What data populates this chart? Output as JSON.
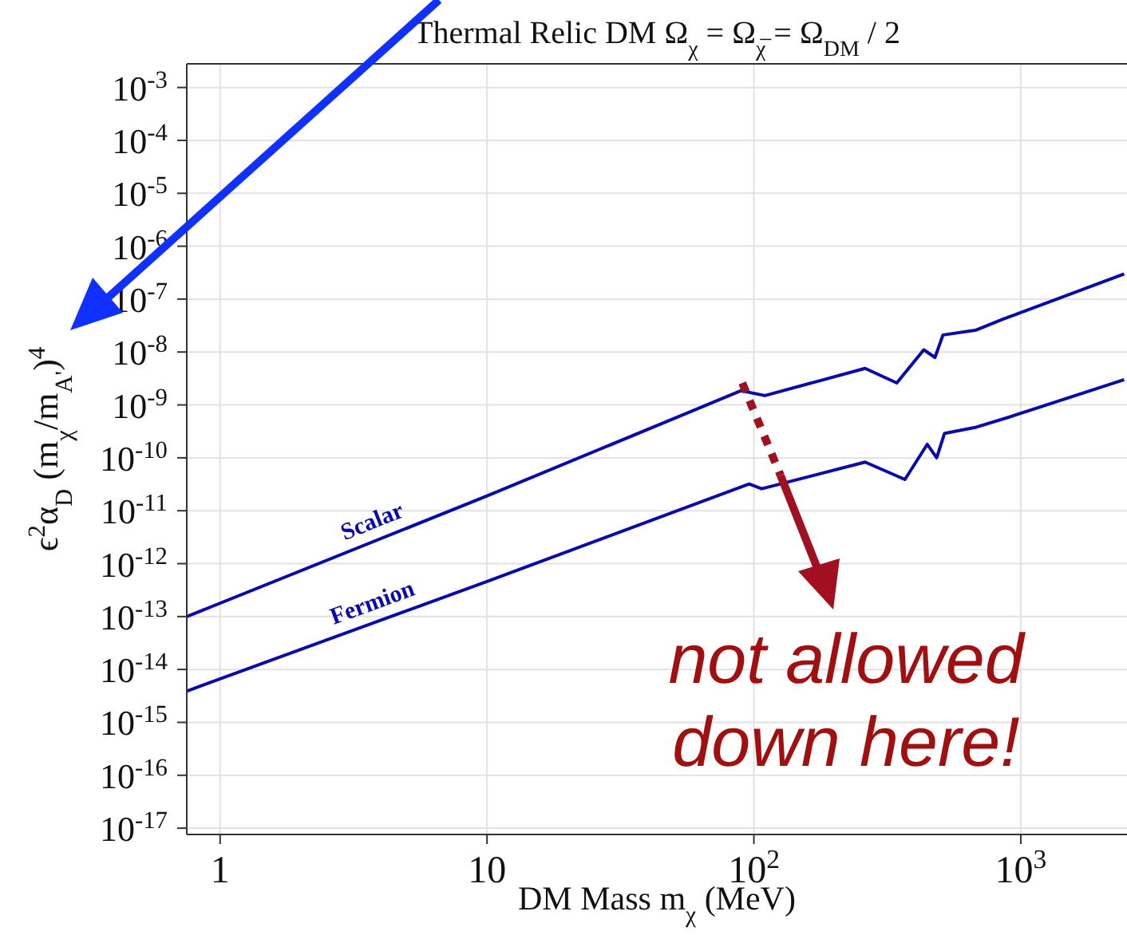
{
  "chart_data": {
    "type": "line",
    "title": "Thermal Relic DM Ω$_{χ}$ = Ω$_{χ̅}$ = Ω$_{DM}$ / 2",
    "xlabel": "DM Mass m$_{χ}$ (MeV)",
    "ylabel": "ϵ$^{2}$α$_{D}$ (m$_{χ}$/m$_{A'}$)$^{4}$",
    "log": "xy",
    "xlim": [
      0.75,
      2500
    ],
    "ylim": [
      7.6e-18,
      0.0028
    ],
    "xticks": [
      1,
      10,
      {
        "value": 100,
        "label": "10$^{2}$"
      },
      {
        "value": 1000,
        "label": "10$^{3}$"
      }
    ],
    "yticks": [
      {
        "value": 1e-17,
        "label": "10$^{-17}$"
      },
      {
        "value": 1e-16,
        "label": "10$^{-16}$"
      },
      {
        "value": 1e-15,
        "label": "10$^{-15}$"
      },
      {
        "value": 1e-14,
        "label": "10$^{-14}$"
      },
      {
        "value": 1e-13,
        "label": "10$^{-13}$"
      },
      {
        "value": 1e-12,
        "label": "10$^{-12}$"
      },
      {
        "value": 1e-11,
        "label": "10$^{-11}$"
      },
      {
        "value": 1e-10,
        "label": "10$^{-10}$"
      },
      {
        "value": 1e-09,
        "label": "10$^{-9}$"
      },
      {
        "value": 1e-08,
        "label": "10$^{-8}$"
      },
      {
        "value": 1e-07,
        "label": "10$^{-7}$"
      },
      {
        "value": 1e-06,
        "label": "10$^{-6}$"
      },
      {
        "value": 1e-05,
        "label": "10$^{-5}$"
      },
      {
        "value": 0.0001,
        "label": "10$^{-4}$"
      },
      {
        "value": 0.001,
        "label": "10$^{-3}$"
      }
    ],
    "grid": true,
    "series": [
      {
        "name": "Scalar",
        "color": "#0a0aa8",
        "x": [
          0.75,
          10,
          89.6,
          110,
          261,
          343,
          433,
          477,
          511,
          681,
          860,
          2440
        ],
        "values": [
          1e-13,
          1.9e-11,
          1.86e-09,
          1.5e-09,
          4.9e-09,
          2.6e-09,
          1.1e-08,
          7.9e-09,
          2.1e-08,
          2.6e-08,
          4.2e-08,
          3e-07
        ]
      },
      {
        "name": "Fermion",
        "color": "#0a0aa8",
        "x": [
          0.75,
          10,
          96,
          107,
          261,
          368,
          446,
          484,
          518,
          681,
          896,
          2440
        ],
        "values": [
          3.9e-15,
          4.6e-13,
          3.2e-11,
          2.6e-11,
          8.3e-11,
          3.9e-11,
          1.8e-10,
          1e-10,
          2.9e-10,
          3.8e-10,
          5.8e-10,
          3e-09
        ]
      }
    ],
    "annotations": [
      "not allowed down here!"
    ]
  }
}
